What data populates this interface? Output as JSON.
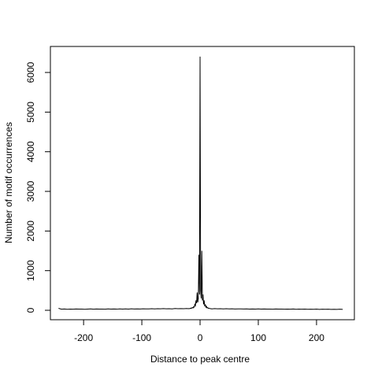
{
  "chart_data": {
    "type": "line",
    "xlabel": "Distance to peak centre",
    "ylabel": "Number of motif occurrences",
    "color": "#000000",
    "xlim": [
      -257,
      265
    ],
    "ylim": [
      -238,
      6656
    ],
    "xticks": [
      -200,
      -100,
      0,
      100,
      200
    ],
    "yticks": [
      0,
      1000,
      2000,
      3000,
      4000,
      5000,
      6000
    ],
    "x": [
      -243,
      -238,
      -233,
      -228,
      -223,
      -218,
      -213,
      -208,
      -203,
      -198,
      -193,
      -188,
      -183,
      -178,
      -173,
      -168,
      -163,
      -158,
      -153,
      -148,
      -143,
      -138,
      -133,
      -128,
      -123,
      -118,
      -113,
      -108,
      -103,
      -98,
      -93,
      -88,
      -83,
      -78,
      -73,
      -68,
      -63,
      -58,
      -53,
      -48,
      -43,
      -38,
      -33,
      -28,
      -23,
      -20,
      -19,
      -18,
      -17,
      -16,
      -15,
      -14,
      -13,
      -12,
      -11,
      -10,
      -9,
      -8,
      -7,
      -6,
      -5,
      -4,
      -3,
      -2,
      -1,
      0,
      1,
      2,
      3,
      4,
      5,
      6,
      7,
      8,
      9,
      10,
      11,
      12,
      13,
      14,
      15,
      16,
      17,
      18,
      19,
      20,
      25,
      30,
      35,
      40,
      45,
      50,
      55,
      60,
      65,
      70,
      75,
      80,
      85,
      90,
      95,
      100,
      105,
      110,
      115,
      120,
      125,
      130,
      135,
      140,
      145,
      150,
      155,
      160,
      165,
      170,
      175,
      180,
      185,
      190,
      195,
      200,
      205,
      210,
      215,
      220,
      225,
      230,
      235,
      240,
      245
    ],
    "values": [
      50,
      28,
      32,
      25,
      30,
      27,
      33,
      29,
      31,
      26,
      30,
      34,
      28,
      32,
      29,
      31,
      27,
      35,
      30,
      33,
      29,
      36,
      31,
      34,
      30,
      37,
      32,
      35,
      33,
      38,
      34,
      36,
      40,
      35,
      39,
      37,
      42,
      38,
      41,
      36,
      44,
      40,
      43,
      39,
      46,
      40,
      45,
      40,
      50,
      45,
      60,
      55,
      70,
      60,
      90,
      80,
      150,
      120,
      250,
      180,
      450,
      200,
      300,
      1400,
      400,
      6400,
      500,
      300,
      1500,
      250,
      400,
      150,
      250,
      100,
      150,
      80,
      100,
      60,
      70,
      50,
      55,
      45,
      45,
      40,
      40,
      35,
      42,
      38,
      40,
      36,
      39,
      35,
      37,
      33,
      36,
      34,
      32,
      35,
      31,
      33,
      30,
      34,
      29,
      32,
      30,
      31,
      28,
      33,
      29,
      31,
      27,
      30,
      28,
      32,
      26,
      29,
      27,
      30,
      25,
      28,
      26,
      29,
      24,
      27,
      25,
      28,
      23,
      26,
      24,
      27,
      22
    ]
  }
}
